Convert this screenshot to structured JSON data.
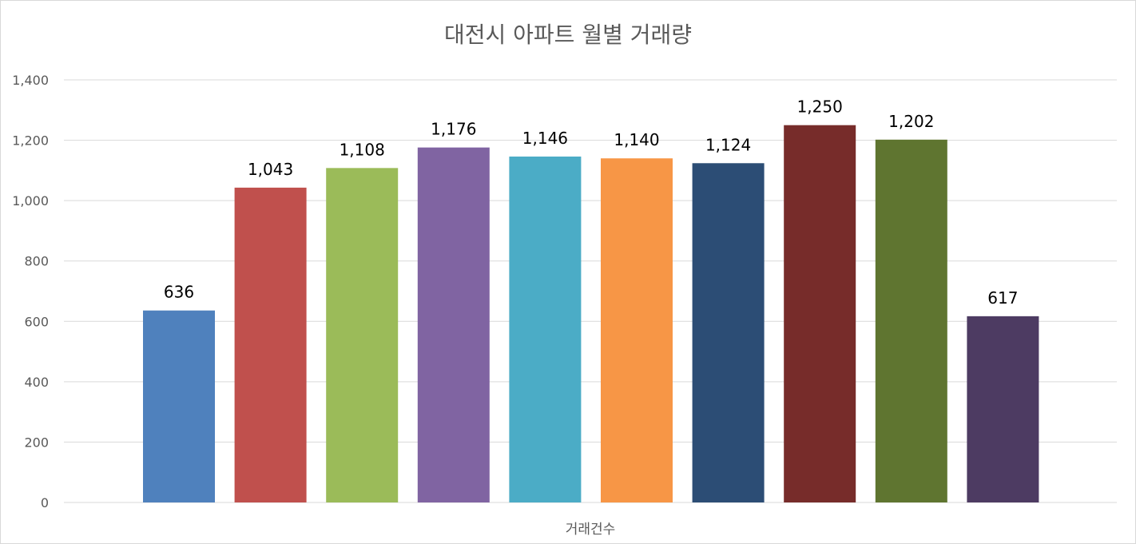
{
  "chart_data": {
    "type": "bar",
    "title": "대전시 아파트 월별 거래량",
    "xlabel": "",
    "ylabel": "",
    "categories": [
      "거래건수"
    ],
    "series": [
      {
        "values": [
          636
        ],
        "color": "#4f81bd"
      },
      {
        "values": [
          1043
        ],
        "color": "#c0504d"
      },
      {
        "values": [
          1108
        ],
        "color": "#9bbb59"
      },
      {
        "values": [
          1176
        ],
        "color": "#8064a2"
      },
      {
        "values": [
          1146
        ],
        "color": "#4bacc6"
      },
      {
        "values": [
          1140
        ],
        "color": "#f79646"
      },
      {
        "values": [
          1124
        ],
        "color": "#2c4d75"
      },
      {
        "values": [
          1250
        ],
        "color": "#772c2a"
      },
      {
        "values": [
          1202
        ],
        "color": "#5f7530"
      },
      {
        "values": [
          617
        ],
        "color": "#4d3b62"
      }
    ],
    "data_labels": [
      "636",
      "1,043",
      "1,108",
      "1,176",
      "1,146",
      "1,140",
      "1,124",
      "1,250",
      "1,202",
      "617"
    ],
    "ylim": [
      0,
      1400
    ],
    "yticks": [
      0,
      200,
      400,
      600,
      800,
      1000,
      1200,
      1400
    ],
    "ytick_labels": [
      "0",
      "200",
      "400",
      "600",
      "800",
      "1,000",
      "1,200",
      "1,400"
    ],
    "grid": true,
    "legend": "none"
  }
}
